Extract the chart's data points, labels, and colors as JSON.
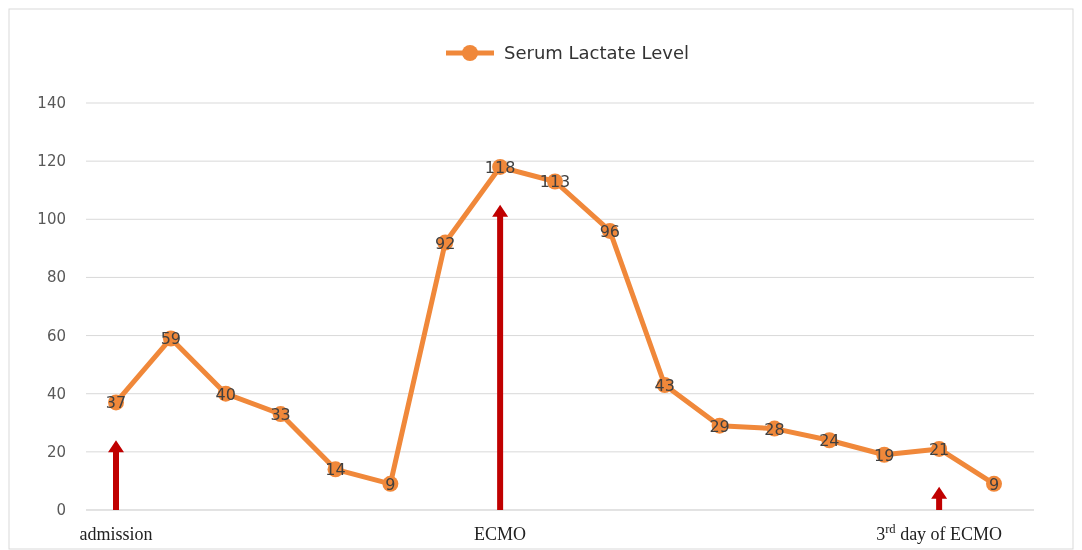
{
  "chart_data": {
    "type": "line",
    "categories": [
      "admission",
      null,
      null,
      null,
      null,
      null,
      null,
      "ECMO",
      null,
      null,
      null,
      null,
      null,
      null,
      null,
      "3$^{rd}$ day of ECMO",
      null
    ],
    "series": [
      {
        "name": "Serum Lactate Level",
        "color": "#f0883a",
        "values": [
          37,
          59,
          40,
          33,
          14,
          9,
          92,
          118,
          113,
          96,
          43,
          29,
          28,
          24,
          19,
          21,
          9
        ]
      }
    ],
    "ylim": [
      0,
      140
    ],
    "yticks": [
      0,
      20,
      40,
      60,
      80,
      100,
      120,
      140
    ],
    "grid": "y",
    "legend": "top",
    "marker": "circle",
    "data_labels": true
  }
}
